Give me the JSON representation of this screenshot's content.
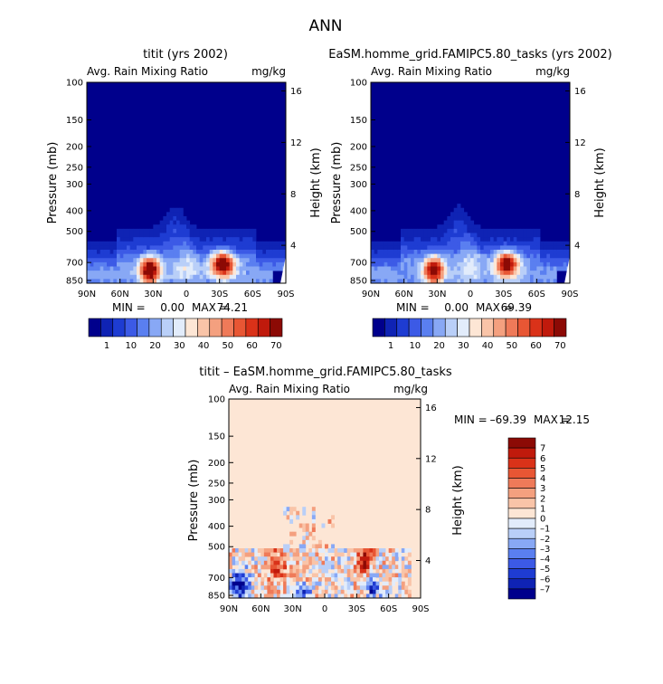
{
  "page_title": "ANN",
  "colors": {
    "cool": [
      "#00008c",
      "#0f23b4",
      "#1e3cd2",
      "#3c5ae6",
      "#5a7ff0",
      "#88a8f5",
      "#b9cff8",
      "#e2ecfb"
    ],
    "warm": [
      "#fde6d5",
      "#f9c4a8",
      "#f4a07f",
      "#ef7a59",
      "#e85634",
      "#da3219",
      "#c01a0c",
      "#8c0a05"
    ],
    "diff_neg": [
      "#e2ecfb",
      "#b9cff8",
      "#88a8f5",
      "#5a7ff0",
      "#3c5ae6",
      "#1e3cd2",
      "#0f23b4",
      "#00008c"
    ],
    "diff_pos": [
      "#fde6d5",
      "#f9c4a8",
      "#f4a07f",
      "#ef7a59",
      "#e85634",
      "#da3219",
      "#c01a0c",
      "#8c0a05"
    ],
    "background_field": "#00008c",
    "diff_background": "#fde6d5"
  },
  "chart_data": [
    {
      "type": "heatmap",
      "panel": "test",
      "title": "titit (yrs 2002)",
      "left_label": "Avg. Rain Mixing Ratio",
      "right_label": "mg/kg",
      "ylabel": "Pressure (mb)",
      "y2label": "Height (km)",
      "x_ticks": [
        "90N",
        "60N",
        "30N",
        "0",
        "30S",
        "60S",
        "90S"
      ],
      "y_ticks": [
        "100",
        "150",
        "200",
        "250",
        "300",
        "400",
        "500",
        "700",
        "850"
      ],
      "y2_ticks": [
        "16",
        "12",
        "8",
        "4"
      ],
      "stats": {
        "min_label": "MIN =",
        "min": "0.00",
        "max_label": "MAX =",
        "max": "74.21"
      },
      "colorbar_labels": [
        "1",
        "10",
        "20",
        "30",
        "40",
        "50",
        "60",
        "70"
      ],
      "hotspots": [
        {
          "lat": 33,
          "p": 750,
          "value": 74.21
        },
        {
          "lat": -33,
          "p": 700,
          "value": 70
        }
      ]
    },
    {
      "type": "heatmap",
      "panel": "control",
      "title": "EaSM.homme_grid.FAMIPC5.80_tasks (yrs 2002)",
      "left_label": "Avg. Rain Mixing Ratio",
      "right_label": "mg/kg",
      "ylabel": "Pressure (mb)",
      "y2label": "Height (km)",
      "x_ticks": [
        "90N",
        "60N",
        "30N",
        "0",
        "30S",
        "60S",
        "90S"
      ],
      "y_ticks": [
        "100",
        "150",
        "200",
        "250",
        "300",
        "400",
        "500",
        "700",
        "850"
      ],
      "y2_ticks": [
        "16",
        "12",
        "8",
        "4"
      ],
      "stats": {
        "min_label": "MIN =",
        "min": "0.00",
        "max_label": "MAX =",
        "max": "69.39"
      },
      "colorbar_labels": [
        "1",
        "10",
        "20",
        "30",
        "40",
        "50",
        "60",
        "70"
      ],
      "hotspots": [
        {
          "lat": 33,
          "p": 750,
          "value": 69.39
        },
        {
          "lat": -33,
          "p": 700,
          "value": 65
        }
      ]
    },
    {
      "type": "heatmap",
      "panel": "difference",
      "title": "titit – EaSM.homme_grid.FAMIPC5.80_tasks",
      "left_label": "Avg. Rain Mixing Ratio",
      "right_label": "mg/kg",
      "ylabel": "Pressure (mb)",
      "y2label": "Height (km)",
      "x_ticks": [
        "90N",
        "60N",
        "30N",
        "0",
        "30S",
        "60S",
        "90S"
      ],
      "y_ticks": [
        "100",
        "150",
        "200",
        "250",
        "300",
        "400",
        "500",
        "700",
        "850"
      ],
      "y2_ticks": [
        "16",
        "12",
        "8",
        "4"
      ],
      "stats": {
        "min_label": "MIN =",
        "min": "–69.39",
        "max_label": "MAX =",
        "max": "12.15"
      },
      "colorbar_labels": [
        "7",
        "6",
        "5",
        "4",
        "3",
        "2",
        "1",
        "0",
        "–1",
        "–2",
        "–3",
        "–4",
        "–5",
        "–6",
        "–7"
      ]
    }
  ]
}
